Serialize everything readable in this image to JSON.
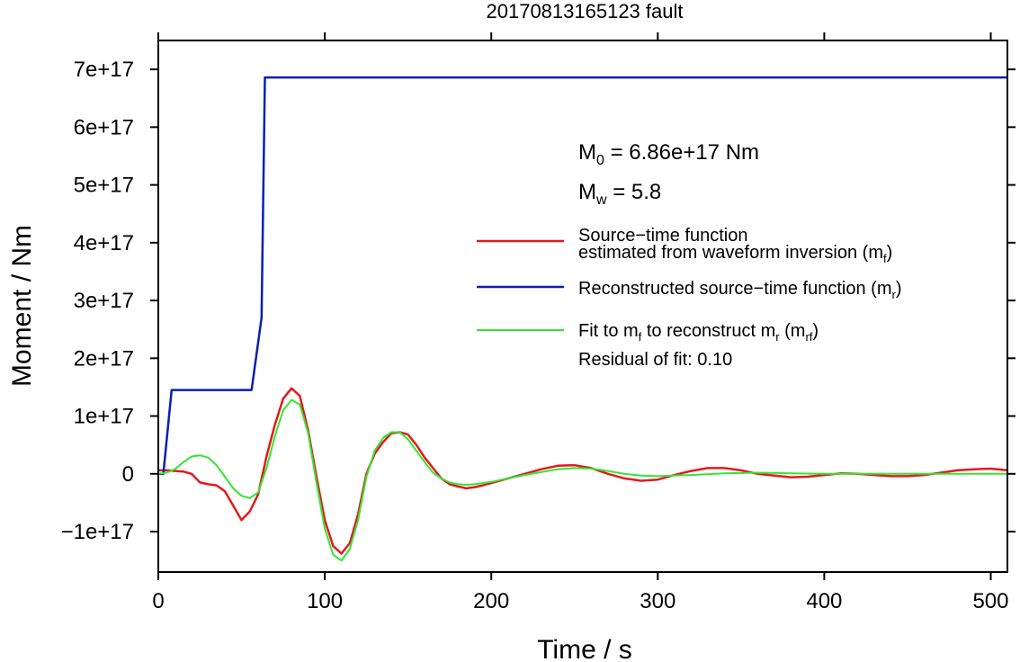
{
  "chart_data": {
    "type": "line",
    "title": "20170813165123 fault",
    "xlabel": "Time / s",
    "ylabel": "Moment / Nm",
    "xlim": [
      0,
      510
    ],
    "ylim": [
      -1.7e+17,
      7.5e+17
    ],
    "x_ticks": [
      0,
      100,
      200,
      300,
      400,
      500
    ],
    "x_tick_labels": [
      "0",
      "100",
      "200",
      "300",
      "400",
      "500"
    ],
    "y_ticks": [
      -1e+17,
      0,
      1e+17,
      2e+17,
      3e+17,
      4e+17,
      5e+17,
      6e+17,
      7e+17
    ],
    "y_tick_labels": [
      "−1e+17",
      "0",
      "1e+17",
      "2e+17",
      "3e+17",
      "4e+17",
      "5e+17",
      "6e+17",
      "7e+17"
    ],
    "grid": false,
    "legend_position": "right",
    "annotations": {
      "m0_symbol": "M",
      "m0_sub": "0",
      "m0_text": " = 6.86e+17 Nm",
      "mw_symbol": "M",
      "mw_sub": "w",
      "mw_text": " = 5.8",
      "residual": "Residual of fit: 0.10"
    },
    "legend": [
      {
        "line1": "Source−time function",
        "line2": "estimated from waveform inversion (m",
        "sub": "f",
        "tail": ")",
        "color": "#e31a1c"
      },
      {
        "line1": "Reconstructed source−time function (m",
        "sub": "r",
        "tail": ")",
        "color": "#0a1fb4"
      },
      {
        "line1": "Fit to m",
        "sub": "f",
        "mid": " to reconstruct m",
        "sub2": "r",
        "mid2": " (m",
        "sub3": "rf",
        "tail": ")",
        "color": "#33e633"
      }
    ],
    "series": [
      {
        "color": "#e31a1c",
        "x": [
          0,
          5,
          10,
          15,
          20,
          25,
          30,
          35,
          40,
          45,
          50,
          55,
          60,
          65,
          70,
          75,
          80,
          85,
          90,
          95,
          100,
          105,
          110,
          115,
          120,
          125,
          130,
          135,
          140,
          145,
          150,
          155,
          160,
          165,
          170,
          175,
          180,
          185,
          190,
          195,
          200,
          210,
          220,
          230,
          240,
          250,
          260,
          270,
          280,
          290,
          300,
          310,
          320,
          330,
          340,
          350,
          360,
          370,
          380,
          390,
          400,
          410,
          420,
          430,
          440,
          450,
          460,
          470,
          480,
          490,
          500,
          510
        ],
        "y": [
          6000000000000000.0,
          6000000000000000.0,
          5000000000000000.0,
          4000000000000000.0,
          0.0,
          -1.5e+16,
          -1.8e+16,
          -2e+16,
          -3e+16,
          -5.5e+16,
          -8e+16,
          -6.5e+16,
          -3.5e+16,
          3e+16,
          8.5e+16,
          1.3e+17,
          1.48e+17,
          1.35e+17,
          7.5e+16,
          -5000000000000000.0,
          -8e+16,
          -1.25e+17,
          -1.38e+17,
          -1.2e+17,
          -7e+16,
          0.0,
          3.5e+16,
          5.5e+16,
          7e+16,
          7.2e+16,
          6.8e+16,
          5e+16,
          2.8e+16,
          1e+16,
          -8000000000000000.0,
          -1.8e+16,
          -2.2e+16,
          -2.5e+16,
          -2.3e+16,
          -2e+16,
          -1.6e+16,
          -8000000000000000.0,
          0.0,
          8000000000000000.0,
          1.4e+16,
          1.5e+16,
          1e+16,
          0.0,
          -8000000000000000.0,
          -1.2e+16,
          -1e+16,
          -2000000000000000.0,
          5000000000000000.0,
          1e+16,
          1e+16,
          6000000000000000.0,
          0.0,
          -3000000000000000.0,
          -6000000000000000.0,
          -5000000000000000.0,
          -2000000000000000.0,
          1000000000000000.0,
          0.0,
          -2000000000000000.0,
          -4000000000000000.0,
          -4000000000000000.0,
          -2000000000000000.0,
          2000000000000000.0,
          6000000000000000.0,
          8000000000000000.0,
          9000000000000000.0,
          6000000000000000.0
        ]
      },
      {
        "color": "#0a1fb4",
        "x": [
          0,
          3,
          8,
          56,
          62,
          64,
          510
        ],
        "y": [
          0,
          0,
          1.45e+17,
          1.45e+17,
          2.7e+17,
          6.86e+17,
          6.86e+17
        ]
      },
      {
        "color": "#33e633",
        "x": [
          0,
          5,
          10,
          15,
          20,
          25,
          30,
          35,
          40,
          45,
          50,
          55,
          60,
          65,
          70,
          75,
          80,
          85,
          90,
          95,
          100,
          105,
          110,
          115,
          120,
          125,
          130,
          135,
          140,
          145,
          150,
          155,
          160,
          165,
          170,
          175,
          180,
          185,
          190,
          200,
          210,
          220,
          230,
          240,
          250,
          260,
          270,
          280,
          290,
          300,
          320,
          340,
          360,
          380,
          400,
          420,
          440,
          460,
          480,
          500,
          510
        ],
        "y": [
          0.0,
          2000000000000000.0,
          8000000000000000.0,
          2e+16,
          3e+16,
          3.2e+16,
          2.8e+16,
          1.5e+16,
          -5000000000000000.0,
          -2.5e+16,
          -3.8e+16,
          -4.2e+16,
          -3.2e+16,
          1e+16,
          6.5e+16,
          1.1e+17,
          1.28e+17,
          1.2e+17,
          7e+16,
          -1.5e+16,
          -9.5e+16,
          -1.4e+17,
          -1.5e+17,
          -1.3e+17,
          -8e+16,
          -5000000000000000.0,
          4e+16,
          6.2e+16,
          7.2e+16,
          7.2e+16,
          6e+16,
          4e+16,
          2e+16,
          2000000000000000.0,
          -8000000000000000.0,
          -1.5e+16,
          -1.8e+16,
          -1.9e+16,
          -1.8e+16,
          -1.4e+16,
          -8000000000000000.0,
          -2000000000000000.0,
          3000000000000000.0,
          8000000000000000.0,
          1e+16,
          9000000000000000.0,
          5000000000000000.0,
          0.0,
          -3000000000000000.0,
          -4000000000000000.0,
          -2000000000000000.0,
          1000000000000000.0,
          2000000000000000.0,
          1000000000000000.0,
          0.0,
          0.0,
          0.0,
          0.0,
          0.0,
          0.0,
          0.0
        ]
      }
    ]
  }
}
